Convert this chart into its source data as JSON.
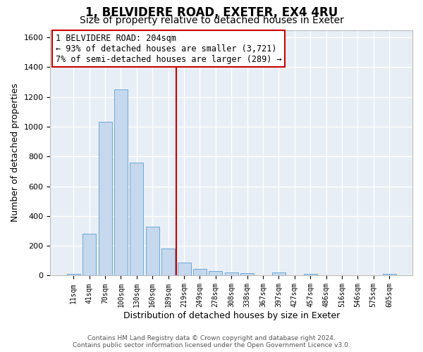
{
  "title_line1": "1, BELVIDERE ROAD, EXETER, EX4 4RU",
  "title_line2": "Size of property relative to detached houses in Exeter",
  "xlabel": "Distribution of detached houses by size in Exeter",
  "ylabel": "Number of detached properties",
  "categories": [
    "11sqm",
    "41sqm",
    "70sqm",
    "100sqm",
    "130sqm",
    "160sqm",
    "189sqm",
    "219sqm",
    "249sqm",
    "278sqm",
    "308sqm",
    "338sqm",
    "367sqm",
    "397sqm",
    "427sqm",
    "457sqm",
    "486sqm",
    "516sqm",
    "546sqm",
    "575sqm",
    "605sqm"
  ],
  "values": [
    10,
    280,
    1035,
    1250,
    760,
    330,
    180,
    88,
    47,
    32,
    22,
    15,
    0,
    20,
    0,
    10,
    0,
    0,
    0,
    0,
    10
  ],
  "bar_color": "#c5d8ed",
  "bar_edge_color": "#5a9fd4",
  "vline_x_index": 6.5,
  "vline_color": "#cc0000",
  "annotation_line1": "1 BELVIDERE ROAD: 204sqm",
  "annotation_line2": "← 93% of detached houses are smaller (3,721)",
  "annotation_line3": "7% of semi-detached houses are larger (289) →",
  "ylim": [
    0,
    1650
  ],
  "yticks": [
    0,
    200,
    400,
    600,
    800,
    1000,
    1200,
    1400,
    1600
  ],
  "background_color": "#e8eef5",
  "grid_color": "#ffffff",
  "footer_text": "Contains HM Land Registry data © Crown copyright and database right 2024.\nContains public sector information licensed under the Open Government Licence v3.0.",
  "title_fontsize": 12,
  "subtitle_fontsize": 10,
  "xlabel_fontsize": 9,
  "ylabel_fontsize": 9,
  "annotation_fontsize": 8.5,
  "tick_fontsize": 7
}
